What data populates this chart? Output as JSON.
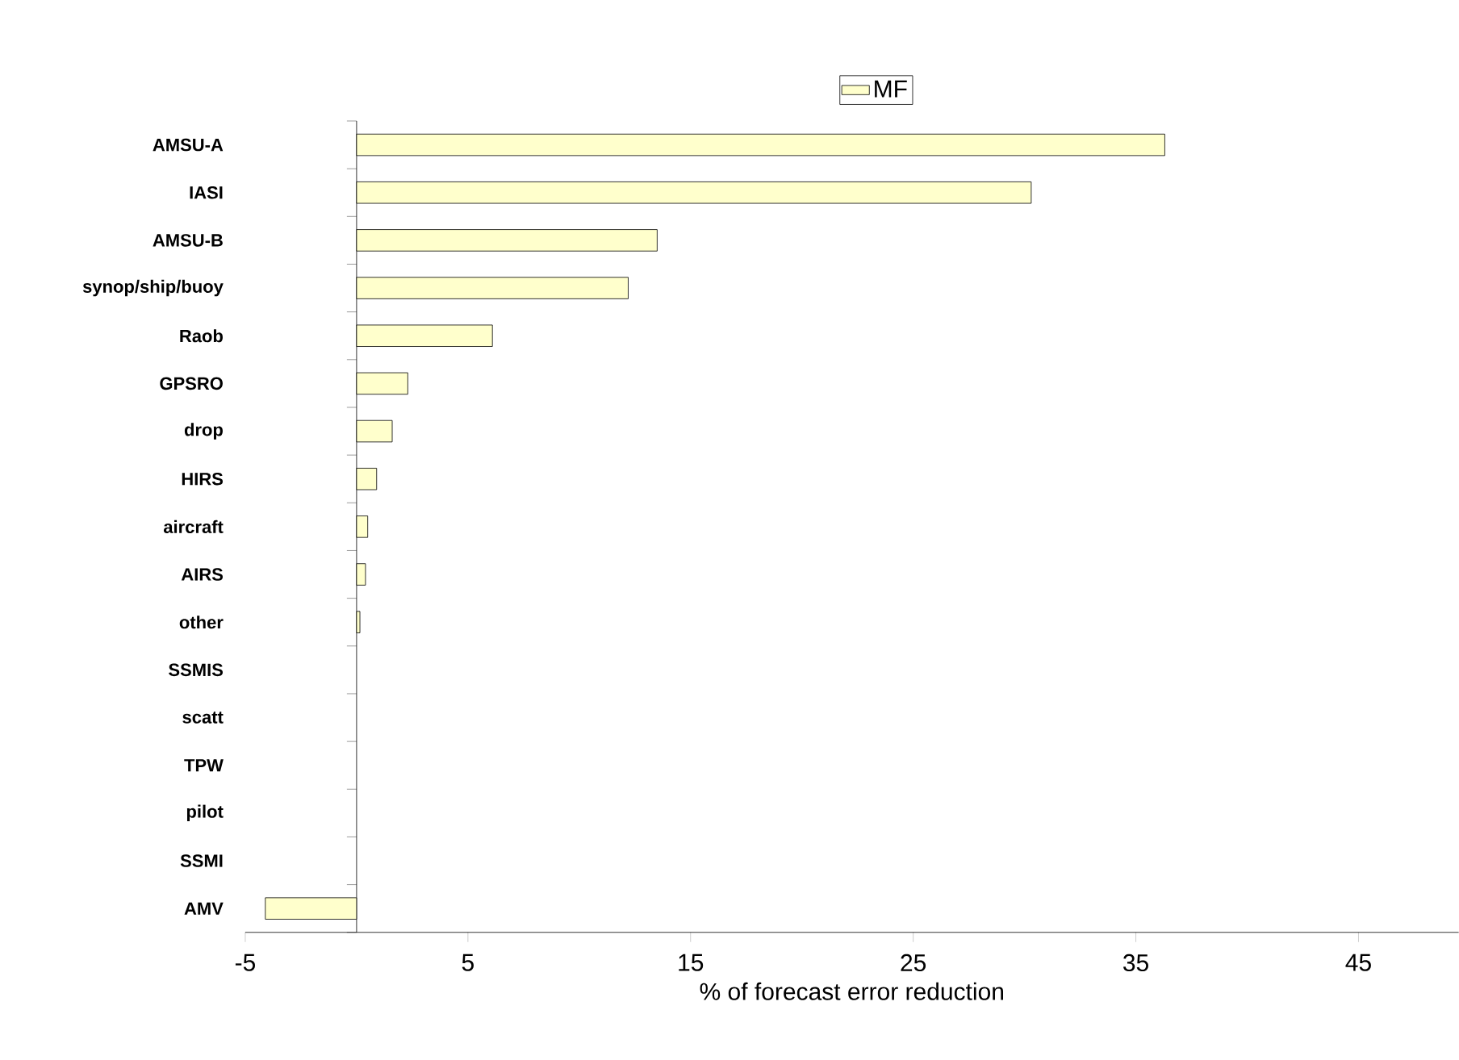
{
  "chart_data": {
    "type": "bar",
    "orientation": "horizontal",
    "xlabel": "% of forecast error reduction",
    "categories": [
      "AMSU-A",
      "IASI",
      "AMSU-B",
      "synop/ship/buoy",
      "Raob",
      "GPSRO",
      "drop",
      "HIRS",
      "aircraft",
      "AIRS",
      "other",
      "SSMIS",
      "scatt",
      "TPW",
      "pilot",
      "SSMI",
      "AMV"
    ],
    "series": [
      {
        "name": "MF",
        "color": "#ffffcc",
        "values": [
          36.3,
          30.3,
          13.5,
          12.2,
          6.1,
          2.3,
          1.6,
          0.9,
          0.5,
          0.4,
          0.15,
          null,
          null,
          null,
          null,
          null,
          -4.1
        ]
      }
    ],
    "xlim": [
      -5,
      49.5
    ],
    "xticks": [
      -5,
      5,
      15,
      25,
      35,
      45
    ],
    "grid": false,
    "legend": "top"
  }
}
